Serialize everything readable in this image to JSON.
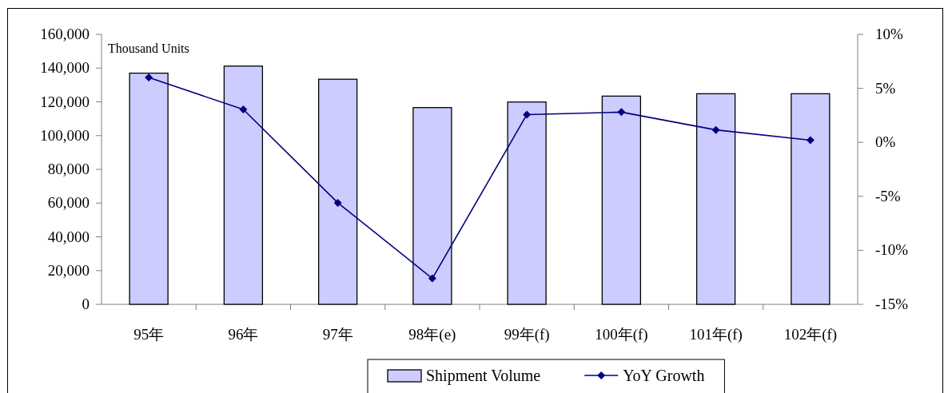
{
  "chart_data": {
    "type": "bar",
    "ylabel": "Thousand Units",
    "categories": [
      "95年",
      "96年",
      "97年",
      "98年(e)",
      "99年(f)",
      "100年(f)",
      "101年(f)",
      "102年(f)"
    ],
    "series": [
      {
        "name": "Shipment Volume",
        "color": "#ccccff",
        "values": [
          137000,
          141200,
          133400,
          116600,
          119900,
          123400,
          124800,
          124800
        ]
      },
      {
        "name": "YoY Growth",
        "type": "line",
        "axis": "y2",
        "color": "#000080",
        "marker": "diamond",
        "values": [
          6.0,
          3.05,
          -5.6,
          -12.6,
          2.57,
          2.8,
          1.15,
          0.2
        ]
      }
    ],
    "ylim": [
      0,
      160000
    ],
    "yticks": [
      {
        "value": 0,
        "label": "0"
      },
      {
        "value": 20000,
        "label": "20,000"
      },
      {
        "value": 40000,
        "label": "40,000"
      },
      {
        "value": 60000,
        "label": "60,000"
      },
      {
        "value": 80000,
        "label": "80,000"
      },
      {
        "value": 100000,
        "label": "100,000"
      },
      {
        "value": 120000,
        "label": "120,000"
      },
      {
        "value": 140000,
        "label": "140,000"
      },
      {
        "value": 160000,
        "label": "160,000"
      }
    ],
    "y2lim": [
      -15,
      10
    ],
    "y2ticks": [
      {
        "value": -15,
        "label": "-15%"
      },
      {
        "value": -10,
        "label": "-10%"
      },
      {
        "value": -5,
        "label": "-5%"
      },
      {
        "value": 0,
        "label": "0%"
      },
      {
        "value": 5,
        "label": "5%"
      },
      {
        "value": 10,
        "label": "10%"
      }
    ],
    "legend": "bottom"
  }
}
